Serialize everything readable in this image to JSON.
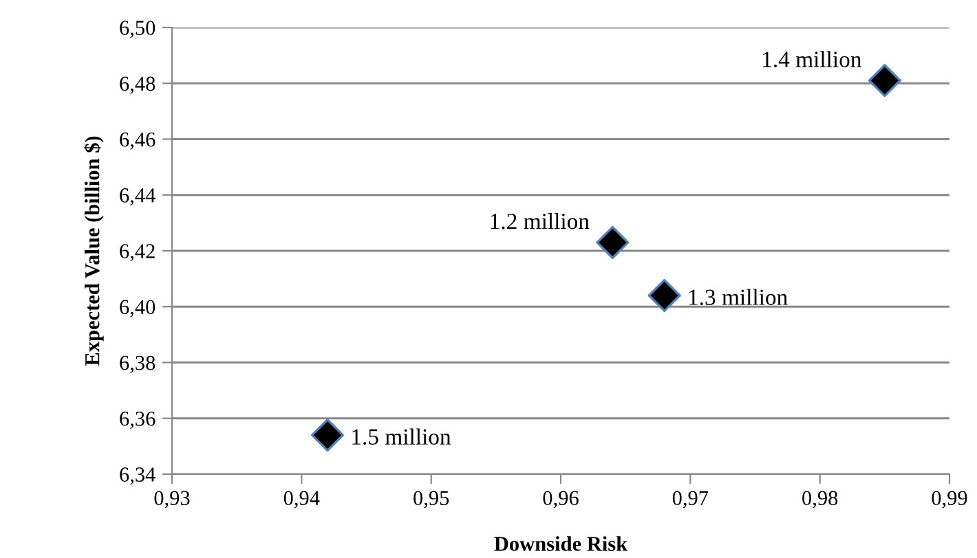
{
  "chart_data": {
    "type": "scatter",
    "xlabel": "Downside Risk",
    "ylabel": "Expected Value (billion $)",
    "series": [
      {
        "color": "#000000",
        "x": [
          0.942,
          0.964,
          0.968,
          0.985
        ],
        "values": [
          6.354,
          6.423,
          6.404,
          6.481
        ]
      }
    ],
    "annotations": [
      {
        "text": "1.5 million",
        "x": 0.942,
        "y": 6.354
      },
      {
        "text": "1.2 million",
        "x": 0.964,
        "y": 6.423
      },
      {
        "text": "1.3 million",
        "x": 0.968,
        "y": 6.404
      },
      {
        "text": "1.4 million",
        "x": 0.985,
        "y": 6.481
      }
    ],
    "xlim": [
      0.93,
      0.99
    ],
    "xticks": [
      {
        "value": 0.93,
        "label": "0,93"
      },
      {
        "value": 0.94,
        "label": "0,94"
      },
      {
        "value": 0.95,
        "label": "0,95"
      },
      {
        "value": 0.96,
        "label": "0,96"
      },
      {
        "value": 0.97,
        "label": "0,97"
      },
      {
        "value": 0.98,
        "label": "0,98"
      },
      {
        "value": 0.99,
        "label": "0,99"
      }
    ],
    "ylim": [
      6.34,
      6.5
    ],
    "yticks": [
      {
        "value": 6.34,
        "label": "6,34"
      },
      {
        "value": 6.36,
        "label": "6,36"
      },
      {
        "value": 6.38,
        "label": "6,38"
      },
      {
        "value": 6.4,
        "label": "6,40"
      },
      {
        "value": 6.42,
        "label": "6,42"
      },
      {
        "value": 6.44,
        "label": "6,44"
      },
      {
        "value": 6.46,
        "label": "6,46"
      },
      {
        "value": 6.48,
        "label": "6,48"
      },
      {
        "value": 6.5,
        "label": "6,50"
      }
    ],
    "grid": "y",
    "marker": "diamond"
  }
}
